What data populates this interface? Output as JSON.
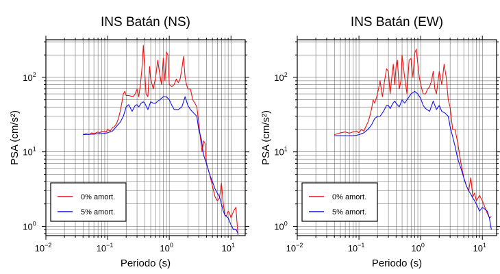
{
  "chart_data": [
    {
      "type": "line",
      "title": "INS Batán (NS)",
      "xlabel": "Periodo (s)",
      "ylabel": "PSA (cm/s²)",
      "xscale": "log",
      "yscale": "log",
      "xlim": [
        0.01,
        17
      ],
      "ylim": [
        0.75,
        320
      ],
      "grid": true,
      "legend_placement": "bottom-left",
      "xticks": [
        {
          "base": "10",
          "exp": "−2"
        },
        {
          "base": "10",
          "exp": "−1"
        },
        {
          "base": "10",
          "exp": "0"
        },
        {
          "base": "10",
          "exp": "1"
        }
      ],
      "yticks": [
        {
          "base": "10",
          "exp": "0"
        },
        {
          "base": "10",
          "exp": "1"
        },
        {
          "base": "10",
          "exp": "2"
        }
      ],
      "series": [
        {
          "name": "0% amort.",
          "color": "#ee1111",
          "x": [
            0.04,
            0.045,
            0.05,
            0.055,
            0.06,
            0.065,
            0.07,
            0.075,
            0.08,
            0.085,
            0.09,
            0.095,
            0.1,
            0.11,
            0.12,
            0.13,
            0.14,
            0.15,
            0.16,
            0.17,
            0.18,
            0.19,
            0.2,
            0.22,
            0.24,
            0.26,
            0.28,
            0.3,
            0.32,
            0.34,
            0.36,
            0.38,
            0.4,
            0.42,
            0.45,
            0.48,
            0.5,
            0.55,
            0.6,
            0.65,
            0.7,
            0.75,
            0.8,
            0.85,
            0.9,
            0.95,
            1.0,
            1.1,
            1.2,
            1.3,
            1.4,
            1.5,
            1.6,
            1.7,
            1.8,
            1.9,
            2.0,
            2.2,
            2.4,
            2.6,
            2.8,
            3.0,
            3.2,
            3.4,
            3.6,
            3.8,
            4.0,
            4.5,
            5.0,
            5.5,
            6.0,
            6.5,
            7.0,
            7.5,
            8.0,
            8.5,
            9.0,
            9.5,
            10.0,
            11.0,
            12.0,
            13.0
          ],
          "values": [
            17,
            17.5,
            17,
            18,
            17.5,
            18,
            18.5,
            18,
            19,
            18.5,
            19,
            18.5,
            20,
            19,
            21,
            22,
            24,
            28,
            35,
            45,
            60,
            65,
            57,
            57,
            56,
            55,
            60,
            70,
            55,
            80,
            130,
            270,
            120,
            60,
            55,
            140,
            95,
            70,
            100,
            170,
            110,
            80,
            180,
            90,
            220,
            200,
            80,
            75,
            80,
            95,
            85,
            95,
            130,
            190,
            100,
            80,
            70,
            70,
            50,
            45,
            40,
            25,
            15,
            10,
            14,
            13,
            7,
            5,
            3.5,
            2.5,
            2.2,
            2.4,
            3.8,
            2.0,
            1.4,
            1.4,
            1.6,
            1.5,
            1.3,
            1.6,
            1.8,
            0.75
          ]
        },
        {
          "name": "5% amort.",
          "color": "#1111ee",
          "x": [
            0.04,
            0.05,
            0.06,
            0.07,
            0.08,
            0.09,
            0.1,
            0.12,
            0.14,
            0.16,
            0.18,
            0.2,
            0.22,
            0.25,
            0.28,
            0.3,
            0.32,
            0.35,
            0.38,
            0.4,
            0.45,
            0.5,
            0.55,
            0.6,
            0.65,
            0.7,
            0.8,
            0.9,
            1.0,
            1.1,
            1.2,
            1.4,
            1.6,
            1.8,
            2.0,
            2.2,
            2.5,
            2.8,
            3.0,
            3.3,
            3.6,
            4.0,
            4.5,
            5.0,
            5.5,
            6.0,
            6.5,
            7.0,
            7.5,
            8.0,
            9.0,
            10.0,
            11.0,
            12.0,
            13.0
          ],
          "values": [
            17,
            17.2,
            17.3,
            17.5,
            17.5,
            17.8,
            18,
            19,
            22,
            25,
            30,
            40,
            43,
            35,
            42,
            43,
            40,
            45,
            47,
            45,
            37,
            47,
            45,
            45,
            48,
            50,
            55,
            55,
            50,
            42,
            37,
            37,
            40,
            55,
            42,
            37,
            33,
            30,
            20,
            15,
            9,
            7,
            5,
            4,
            3.2,
            2.8,
            2.5,
            2.0,
            1.6,
            1.4,
            1.3,
            1.05,
            0.9,
            0.92,
            0.8
          ]
        }
      ]
    },
    {
      "type": "line",
      "title": "INS Batán (EW)",
      "xlabel": "Periodo (s)",
      "ylabel": "PSA (cm/s²)",
      "xscale": "log",
      "yscale": "log",
      "xlim": [
        0.01,
        17
      ],
      "ylim": [
        0.75,
        320
      ],
      "grid": true,
      "legend_placement": "bottom-left",
      "xticks": [
        {
          "base": "10",
          "exp": "−2"
        },
        {
          "base": "10",
          "exp": "−1"
        },
        {
          "base": "10",
          "exp": "0"
        },
        {
          "base": "10",
          "exp": "1"
        }
      ],
      "yticks": [
        {
          "base": "10",
          "exp": "0"
        },
        {
          "base": "10",
          "exp": "1"
        },
        {
          "base": "10",
          "exp": "2"
        }
      ],
      "series": [
        {
          "name": "0% amort.",
          "color": "#ee1111",
          "x": [
            0.04,
            0.05,
            0.06,
            0.07,
            0.08,
            0.09,
            0.1,
            0.11,
            0.12,
            0.13,
            0.14,
            0.15,
            0.16,
            0.17,
            0.18,
            0.2,
            0.22,
            0.24,
            0.26,
            0.28,
            0.3,
            0.32,
            0.34,
            0.36,
            0.38,
            0.4,
            0.42,
            0.45,
            0.48,
            0.5,
            0.55,
            0.6,
            0.65,
            0.7,
            0.75,
            0.8,
            0.85,
            0.9,
            0.95,
            1.0,
            1.1,
            1.2,
            1.3,
            1.4,
            1.5,
            1.6,
            1.7,
            1.8,
            2.0,
            2.2,
            2.4,
            2.6,
            2.8,
            3.0,
            3.3,
            3.6,
            4.0,
            4.5,
            5.0,
            5.5,
            6.0,
            6.5,
            7.0,
            7.5,
            8.0,
            9.0,
            10.0,
            11.0,
            12.0,
            13.0,
            14.0
          ],
          "values": [
            17,
            18,
            18.5,
            17.8,
            18.5,
            19,
            18,
            20,
            19,
            22,
            25,
            30,
            38,
            50,
            45,
            60,
            90,
            55,
            90,
            130,
            120,
            60,
            100,
            150,
            80,
            140,
            170,
            70,
            90,
            200,
            100,
            60,
            170,
            180,
            100,
            210,
            240,
            150,
            100,
            80,
            60,
            60,
            70,
            75,
            90,
            120,
            70,
            60,
            120,
            80,
            150,
            100,
            50,
            40,
            20,
            20,
            13,
            7,
            4.5,
            3.5,
            3.0,
            4.5,
            2.5,
            2.8,
            2.2,
            2.6,
            2.2,
            1.8,
            1.5,
            1.3,
            1.35
          ]
        },
        {
          "name": "5% amort.",
          "color": "#1111ee",
          "x": [
            0.04,
            0.05,
            0.06,
            0.07,
            0.08,
            0.09,
            0.1,
            0.11,
            0.12,
            0.14,
            0.16,
            0.18,
            0.2,
            0.22,
            0.25,
            0.28,
            0.3,
            0.32,
            0.35,
            0.38,
            0.4,
            0.45,
            0.5,
            0.55,
            0.6,
            0.65,
            0.7,
            0.8,
            0.9,
            1.0,
            1.1,
            1.2,
            1.4,
            1.6,
            1.8,
            2.0,
            2.2,
            2.5,
            2.8,
            3.0,
            3.3,
            3.6,
            4.0,
            4.5,
            5.0,
            5.5,
            6.0,
            6.5,
            7.0,
            7.5,
            8.0,
            9.0,
            10.0,
            11.0,
            12.0,
            13.0,
            14.0
          ],
          "values": [
            16.5,
            16.5,
            16.5,
            16.5,
            16.5,
            16.7,
            17,
            17.5,
            18,
            20,
            23,
            28,
            30,
            30,
            35,
            42,
            42,
            38,
            44,
            48,
            45,
            40,
            50,
            45,
            50,
            55,
            60,
            65,
            60,
            52,
            42,
            38,
            35,
            48,
            37,
            42,
            35,
            33,
            30,
            22,
            16,
            12,
            8,
            6,
            4.5,
            3.5,
            3.0,
            2.7,
            2.4,
            2.2,
            2.0,
            1.6,
            1.8,
            1.7,
            1.6,
            1.3,
            0.9
          ]
        }
      ]
    }
  ]
}
